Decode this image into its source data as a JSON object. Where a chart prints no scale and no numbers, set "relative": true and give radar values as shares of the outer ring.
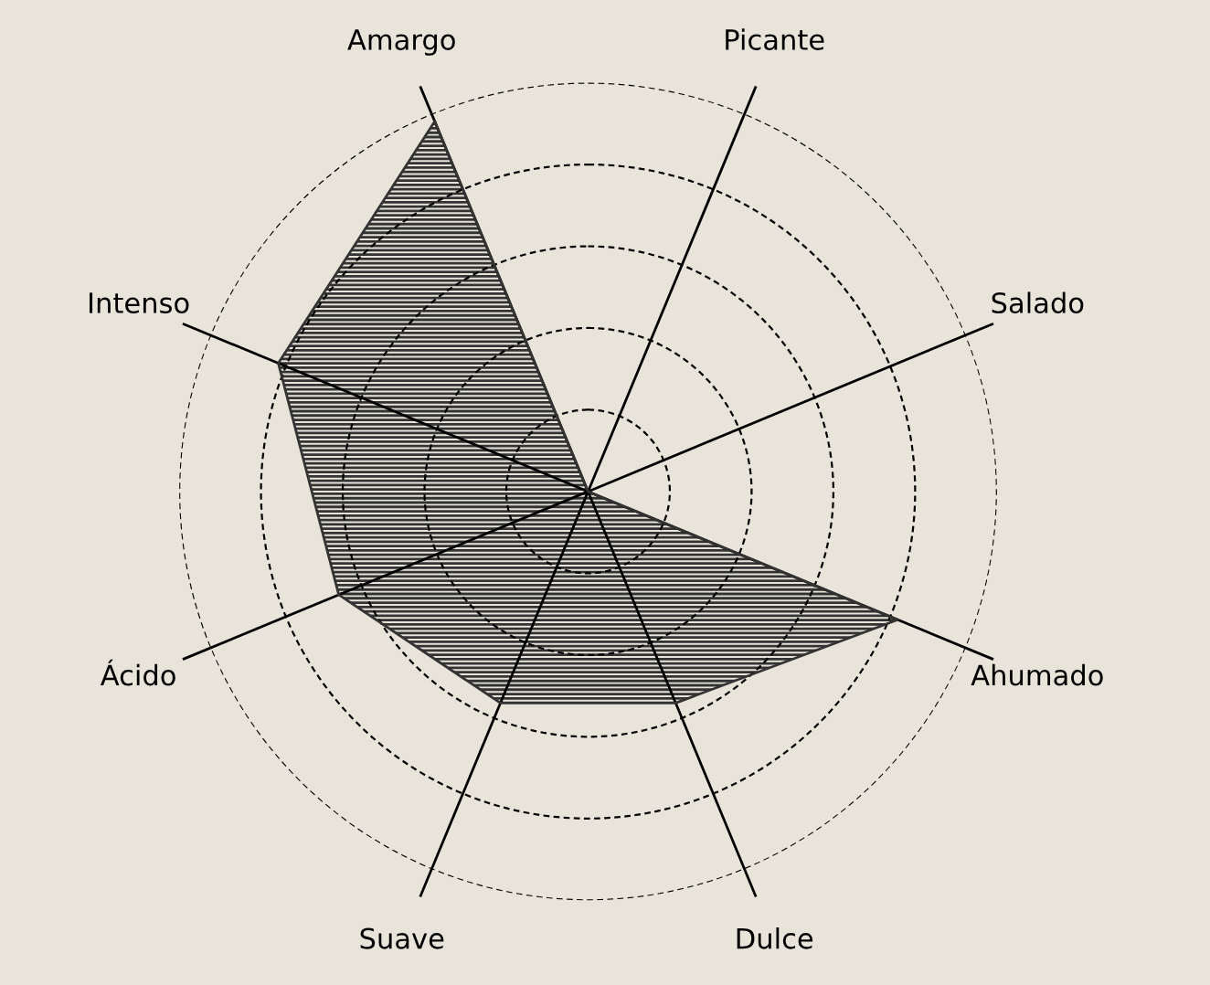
{
  "chart_data": {
    "type": "radar",
    "relative": true,
    "grid": true,
    "marker": "none",
    "line_style": "solid",
    "categories": [
      "Amargo",
      "Picante",
      "Salado",
      "Ahumado",
      "Dulce",
      "Suave",
      "Ácido",
      "Intenso"
    ],
    "series": [
      {
        "color": "#333333",
        "values": [
          0.98,
          0,
          0,
          0.82,
          0.56,
          0.56,
          0.66,
          0.82
        ]
      }
    ]
  }
}
